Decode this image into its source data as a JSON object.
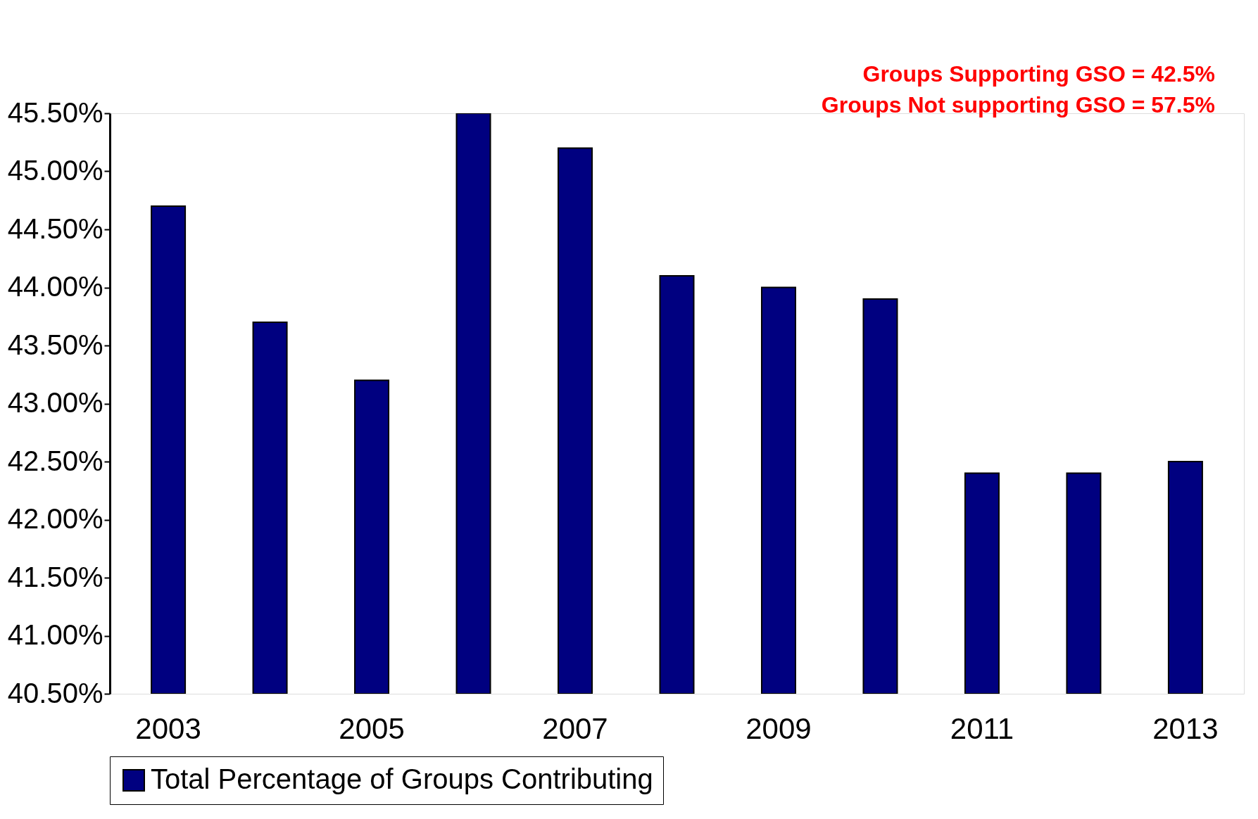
{
  "chart_data": {
    "type": "bar",
    "categories": [
      "2003",
      null,
      "2005",
      null,
      "2007",
      null,
      "2009",
      null,
      "2011",
      null,
      "2013"
    ],
    "series": [
      {
        "name": "Total Percentage of Groups Contributing",
        "color": "#000080",
        "values": [
          44.7,
          43.7,
          43.2,
          45.5,
          45.2,
          44.1,
          44.0,
          43.9,
          42.4,
          42.4,
          42.5
        ]
      }
    ],
    "ylim": [
      40.5,
      45.5
    ],
    "yticks": [
      {
        "value": 40.5,
        "label": "40.50%"
      },
      {
        "value": 41.0,
        "label": "41.00%"
      },
      {
        "value": 41.5,
        "label": "41.50%"
      },
      {
        "value": 42.0,
        "label": "42.00%"
      },
      {
        "value": 42.5,
        "label": "42.50%"
      },
      {
        "value": 43.0,
        "label": "43.00%"
      },
      {
        "value": 43.5,
        "label": "43.50%"
      },
      {
        "value": 44.0,
        "label": "44.00%"
      },
      {
        "value": 44.5,
        "label": "44.50%"
      },
      {
        "value": 45.0,
        "label": "45.00%"
      },
      {
        "value": 45.5,
        "label": "45.50%"
      }
    ],
    "annotations": [
      "Groups Supporting GSO = 42.5%",
      "Groups Not supporting GSO = 57.5%"
    ],
    "grid": false,
    "legend": "bottom"
  }
}
